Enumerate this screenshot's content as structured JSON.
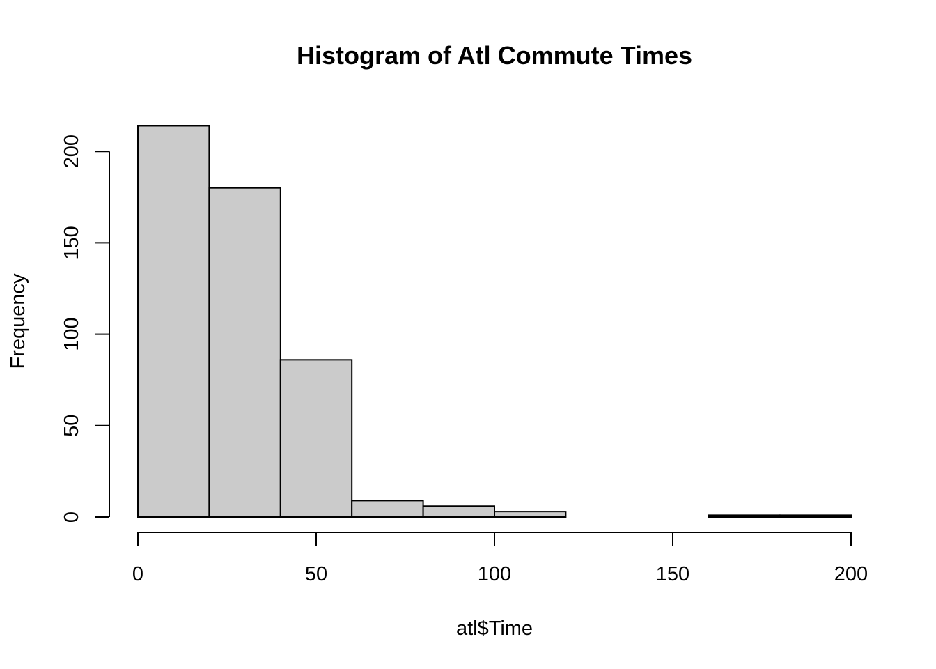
{
  "colors": {
    "bar_fill": "#cbcbcb",
    "bar_stroke": "#000000",
    "axis": "#000000",
    "background": "#ffffff"
  },
  "chart_data": {
    "type": "bar",
    "subtype": "histogram",
    "title": "Histogram of Atl Commute Times",
    "xlabel": "atl$Time",
    "ylabel": "Frequency",
    "bins": [
      {
        "from": 0,
        "to": 20,
        "count": 214
      },
      {
        "from": 20,
        "to": 40,
        "count": 180
      },
      {
        "from": 40,
        "to": 60,
        "count": 86
      },
      {
        "from": 60,
        "to": 80,
        "count": 9
      },
      {
        "from": 80,
        "to": 100,
        "count": 6
      },
      {
        "from": 100,
        "to": 120,
        "count": 3
      },
      {
        "from": 120,
        "to": 140,
        "count": 0
      },
      {
        "from": 140,
        "to": 160,
        "count": 0
      },
      {
        "from": 160,
        "to": 180,
        "count": 1
      },
      {
        "from": 180,
        "to": 200,
        "count": 1
      }
    ],
    "xlim": [
      0,
      200
    ],
    "ylim": [
      0,
      214
    ],
    "x_ticks": [
      0,
      50,
      100,
      150,
      200
    ],
    "x_tick_labels": [
      "0",
      "50",
      "100",
      "150",
      "200"
    ],
    "y_ticks": [
      0,
      50,
      100,
      150,
      200
    ],
    "y_tick_labels": [
      "0",
      "50",
      "100",
      "150",
      "200"
    ],
    "grid": false,
    "legend": "none"
  }
}
